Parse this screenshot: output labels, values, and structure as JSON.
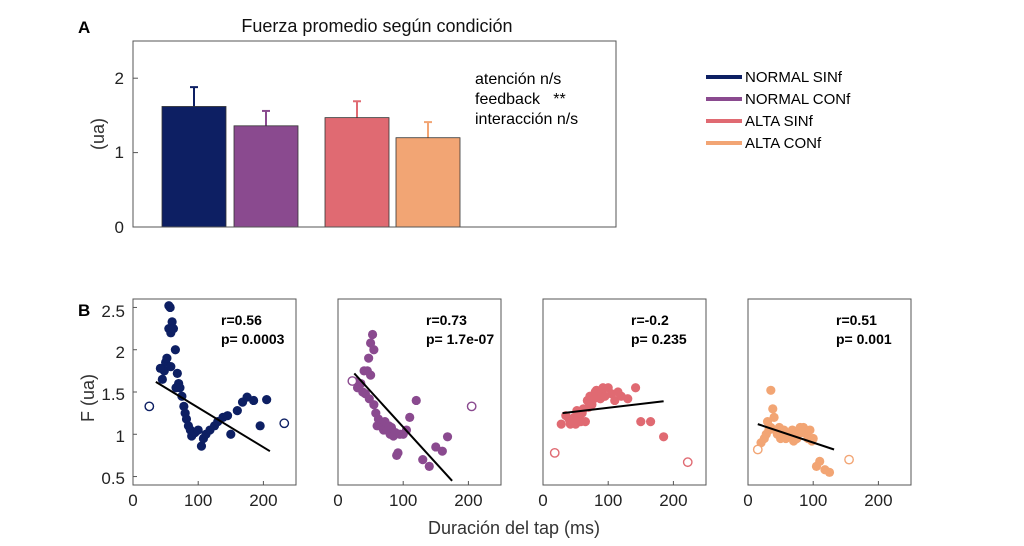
{
  "chart_data": [
    {
      "panel": "A",
      "type": "bar",
      "title": "Fuerza promedio según condición",
      "ylabel": "(ua)",
      "ylim": [
        0,
        2.5
      ],
      "yticks": [
        "0",
        "1",
        "2"
      ],
      "categories": [
        "NORMAL SINf",
        "NORMAL CONf",
        "ALTA SINf",
        "ALTA CONf"
      ],
      "values": [
        1.62,
        1.36,
        1.47,
        1.2
      ],
      "errors": [
        0.26,
        0.2,
        0.22,
        0.21
      ],
      "colors": [
        "#0d1f63",
        "#8a4a8f",
        "#e06a72",
        "#f2a574"
      ],
      "annotations": [
        "atención n/s",
        "feedback   **",
        "interacción n/s"
      ],
      "legend": {
        "position": "right",
        "entries": [
          {
            "label": "NORMAL SINf",
            "color": "#0d1f63"
          },
          {
            "label": "NORMAL CONf",
            "color": "#8a4a8f"
          },
          {
            "label": "ALTA SINf",
            "color": "#e06a72"
          },
          {
            "label": "ALTA CONf",
            "color": "#f2a574"
          }
        ]
      }
    },
    {
      "panel": "B",
      "type": "scatter",
      "xlabel": "Duración del tap (ms)",
      "ylabel": "F (ua)",
      "xlim": [
        0,
        250
      ],
      "ylim": [
        0.4,
        2.6
      ],
      "xticks": [
        "0",
        "100",
        "200"
      ],
      "yticks": [
        "0.5",
        "1",
        "1.5",
        "2",
        "2.5"
      ],
      "subplots": [
        {
          "name": "NORMAL SINf",
          "color": "#0d1f63",
          "r_label": "r=0.56",
          "p_label": "p= 0.0003",
          "fit": [
            [
              35,
              1.62
            ],
            [
              210,
              0.8
            ]
          ],
          "outliers": [
            [
              25,
              1.33
            ],
            [
              232,
              1.13
            ]
          ],
          "points": [
            [
              55,
              2.52
            ],
            [
              57,
              2.5
            ],
            [
              60,
              2.33
            ],
            [
              55,
              2.25
            ],
            [
              58,
              2.2
            ],
            [
              62,
              2.25
            ],
            [
              65,
              2.0
            ],
            [
              50,
              1.85
            ],
            [
              48,
              1.75
            ],
            [
              42,
              1.78
            ],
            [
              45,
              1.65
            ],
            [
              52,
              1.9
            ],
            [
              58,
              1.8
            ],
            [
              68,
              1.72
            ],
            [
              70,
              1.6
            ],
            [
              72,
              1.55
            ],
            [
              66,
              1.55
            ],
            [
              75,
              1.45
            ],
            [
              78,
              1.33
            ],
            [
              80,
              1.25
            ],
            [
              82,
              1.18
            ],
            [
              85,
              1.1
            ],
            [
              88,
              1.05
            ],
            [
              90,
              0.98
            ],
            [
              95,
              1.02
            ],
            [
              100,
              1.05
            ],
            [
              105,
              0.86
            ],
            [
              108,
              0.95
            ],
            [
              112,
              1.0
            ],
            [
              118,
              1.05
            ],
            [
              125,
              1.1
            ],
            [
              130,
              1.15
            ],
            [
              138,
              1.2
            ],
            [
              145,
              1.22
            ],
            [
              150,
              1.0
            ],
            [
              160,
              1.28
            ],
            [
              168,
              1.38
            ],
            [
              175,
              1.44
            ],
            [
              185,
              1.4
            ],
            [
              205,
              1.41
            ],
            [
              195,
              1.1
            ]
          ]
        },
        {
          "name": "NORMAL CONf",
          "color": "#8a4a8f",
          "r_label": "r=0.73",
          "p_label": "p= 1.7e-07",
          "fit": [
            [
              25,
              1.72
            ],
            [
              175,
              0.45
            ]
          ],
          "outliers": [
            [
              22,
              1.63
            ],
            [
              205,
              1.33
            ]
          ],
          "points": [
            [
              53,
              2.18
            ],
            [
              50,
              2.08
            ],
            [
              55,
              2.0
            ],
            [
              47,
              1.9
            ],
            [
              40,
              1.75
            ],
            [
              45,
              1.75
            ],
            [
              50,
              1.7
            ],
            [
              28,
              1.62
            ],
            [
              35,
              1.6
            ],
            [
              30,
              1.55
            ],
            [
              38,
              1.5
            ],
            [
              42,
              1.48
            ],
            [
              48,
              1.42
            ],
            [
              55,
              1.35
            ],
            [
              58,
              1.25
            ],
            [
              62,
              1.18
            ],
            [
              60,
              1.1
            ],
            [
              65,
              1.12
            ],
            [
              68,
              1.08
            ],
            [
              70,
              1.05
            ],
            [
              72,
              1.15
            ],
            [
              75,
              1.05
            ],
            [
              78,
              1.1
            ],
            [
              80,
              1.0
            ],
            [
              82,
              1.08
            ],
            [
              85,
              0.98
            ],
            [
              88,
              1.02
            ],
            [
              90,
              0.75
            ],
            [
              92,
              0.78
            ],
            [
              95,
              1.0
            ],
            [
              100,
              1.0
            ],
            [
              105,
              1.05
            ],
            [
              110,
              1.2
            ],
            [
              120,
              1.4
            ],
            [
              130,
              0.7
            ],
            [
              140,
              0.62
            ],
            [
              150,
              0.85
            ],
            [
              160,
              0.8
            ],
            [
              168,
              0.97
            ]
          ]
        },
        {
          "name": "ALTA SINf",
          "color": "#e06a72",
          "r_label": "r=-0.2",
          "p_label": "p= 0.235",
          "fit": [
            [
              30,
              1.25
            ],
            [
              185,
              1.39
            ]
          ],
          "outliers": [
            [
              18,
              0.78
            ],
            [
              222,
              0.67
            ]
          ],
          "points": [
            [
              28,
              1.12
            ],
            [
              35,
              1.22
            ],
            [
              40,
              1.18
            ],
            [
              42,
              1.12
            ],
            [
              45,
              1.15
            ],
            [
              48,
              1.2
            ],
            [
              50,
              1.12
            ],
            [
              52,
              1.28
            ],
            [
              55,
              1.2
            ],
            [
              58,
              1.15
            ],
            [
              60,
              1.25
            ],
            [
              62,
              1.3
            ],
            [
              65,
              1.15
            ],
            [
              68,
              1.4
            ],
            [
              70,
              1.32
            ],
            [
              72,
              1.45
            ],
            [
              75,
              1.35
            ],
            [
              78,
              1.42
            ],
            [
              80,
              1.5
            ],
            [
              82,
              1.52
            ],
            [
              85,
              1.45
            ],
            [
              88,
              1.42
            ],
            [
              90,
              1.5
            ],
            [
              92,
              1.55
            ],
            [
              95,
              1.45
            ],
            [
              100,
              1.55
            ],
            [
              105,
              1.48
            ],
            [
              110,
              1.4
            ],
            [
              115,
              1.5
            ],
            [
              120,
              1.45
            ],
            [
              130,
              1.42
            ],
            [
              142,
              1.55
            ],
            [
              150,
              1.15
            ],
            [
              165,
              1.15
            ],
            [
              185,
              0.97
            ]
          ]
        },
        {
          "name": "ALTA CONf",
          "color": "#f2a574",
          "r_label": "r=0.51",
          "p_label": "p= 0.001",
          "fit": [
            [
              15,
              1.12
            ],
            [
              132,
              0.82
            ]
          ],
          "outliers": [
            [
              15,
              0.82
            ],
            [
              155,
              0.7
            ]
          ],
          "points": [
            [
              35,
              1.52
            ],
            [
              38,
              1.3
            ],
            [
              40,
              1.2
            ],
            [
              25,
              0.95
            ],
            [
              28,
              1.0
            ],
            [
              32,
              1.05
            ],
            [
              35,
              1.08
            ],
            [
              42,
              1.05
            ],
            [
              45,
              1.0
            ],
            [
              48,
              1.08
            ],
            [
              50,
              0.95
            ],
            [
              52,
              1.02
            ],
            [
              55,
              1.05
            ],
            [
              58,
              0.95
            ],
            [
              60,
              1.0
            ],
            [
              62,
              0.98
            ],
            [
              65,
              1.02
            ],
            [
              68,
              1.05
            ],
            [
              70,
              0.92
            ],
            [
              72,
              0.98
            ],
            [
              75,
              0.95
            ],
            [
              78,
              1.05
            ],
            [
              80,
              1.08
            ],
            [
              82,
              1.02
            ],
            [
              85,
              1.08
            ],
            [
              88,
              1.05
            ],
            [
              90,
              1.0
            ],
            [
              92,
              0.95
            ],
            [
              95,
              1.05
            ],
            [
              98,
              0.92
            ],
            [
              100,
              0.95
            ],
            [
              105,
              0.62
            ],
            [
              110,
              0.68
            ],
            [
              118,
              0.58
            ],
            [
              125,
              0.55
            ],
            [
              20,
              0.9
            ],
            [
              30,
              1.15
            ]
          ]
        }
      ]
    }
  ]
}
